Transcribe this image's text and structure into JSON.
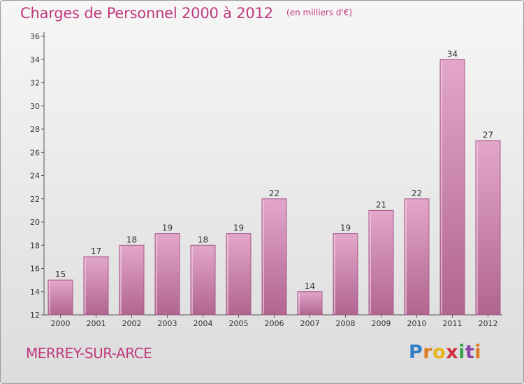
{
  "header": {
    "title": "Charges de Personnel 2000 à 2012",
    "subtitle": "(en milliers d'€)"
  },
  "footer": {
    "commune": "MERREY-SUR-ARCE",
    "brand": "Proxiti"
  },
  "colors": {
    "accent": "#c0397e",
    "bar_top": "#e3a6cb",
    "bar_bottom": "#b06590",
    "bar_stroke": "#a85888"
  },
  "chart_data": {
    "type": "bar",
    "title": "Charges de Personnel 2000 à 2012",
    "subtitle": "(en milliers d'€)",
    "xlabel": "",
    "ylabel": "",
    "categories": [
      "2000",
      "2001",
      "2002",
      "2003",
      "2004",
      "2005",
      "2006",
      "2007",
      "2008",
      "2009",
      "2010",
      "2011",
      "2012"
    ],
    "values": [
      15,
      17,
      18,
      19,
      18,
      19,
      22,
      14,
      19,
      21,
      22,
      34,
      27
    ],
    "ylim": [
      12,
      36
    ],
    "yticks": [
      12,
      14,
      16,
      18,
      20,
      22,
      24,
      26,
      28,
      30,
      32,
      34,
      36
    ],
    "grid": false,
    "data_labels": true
  }
}
